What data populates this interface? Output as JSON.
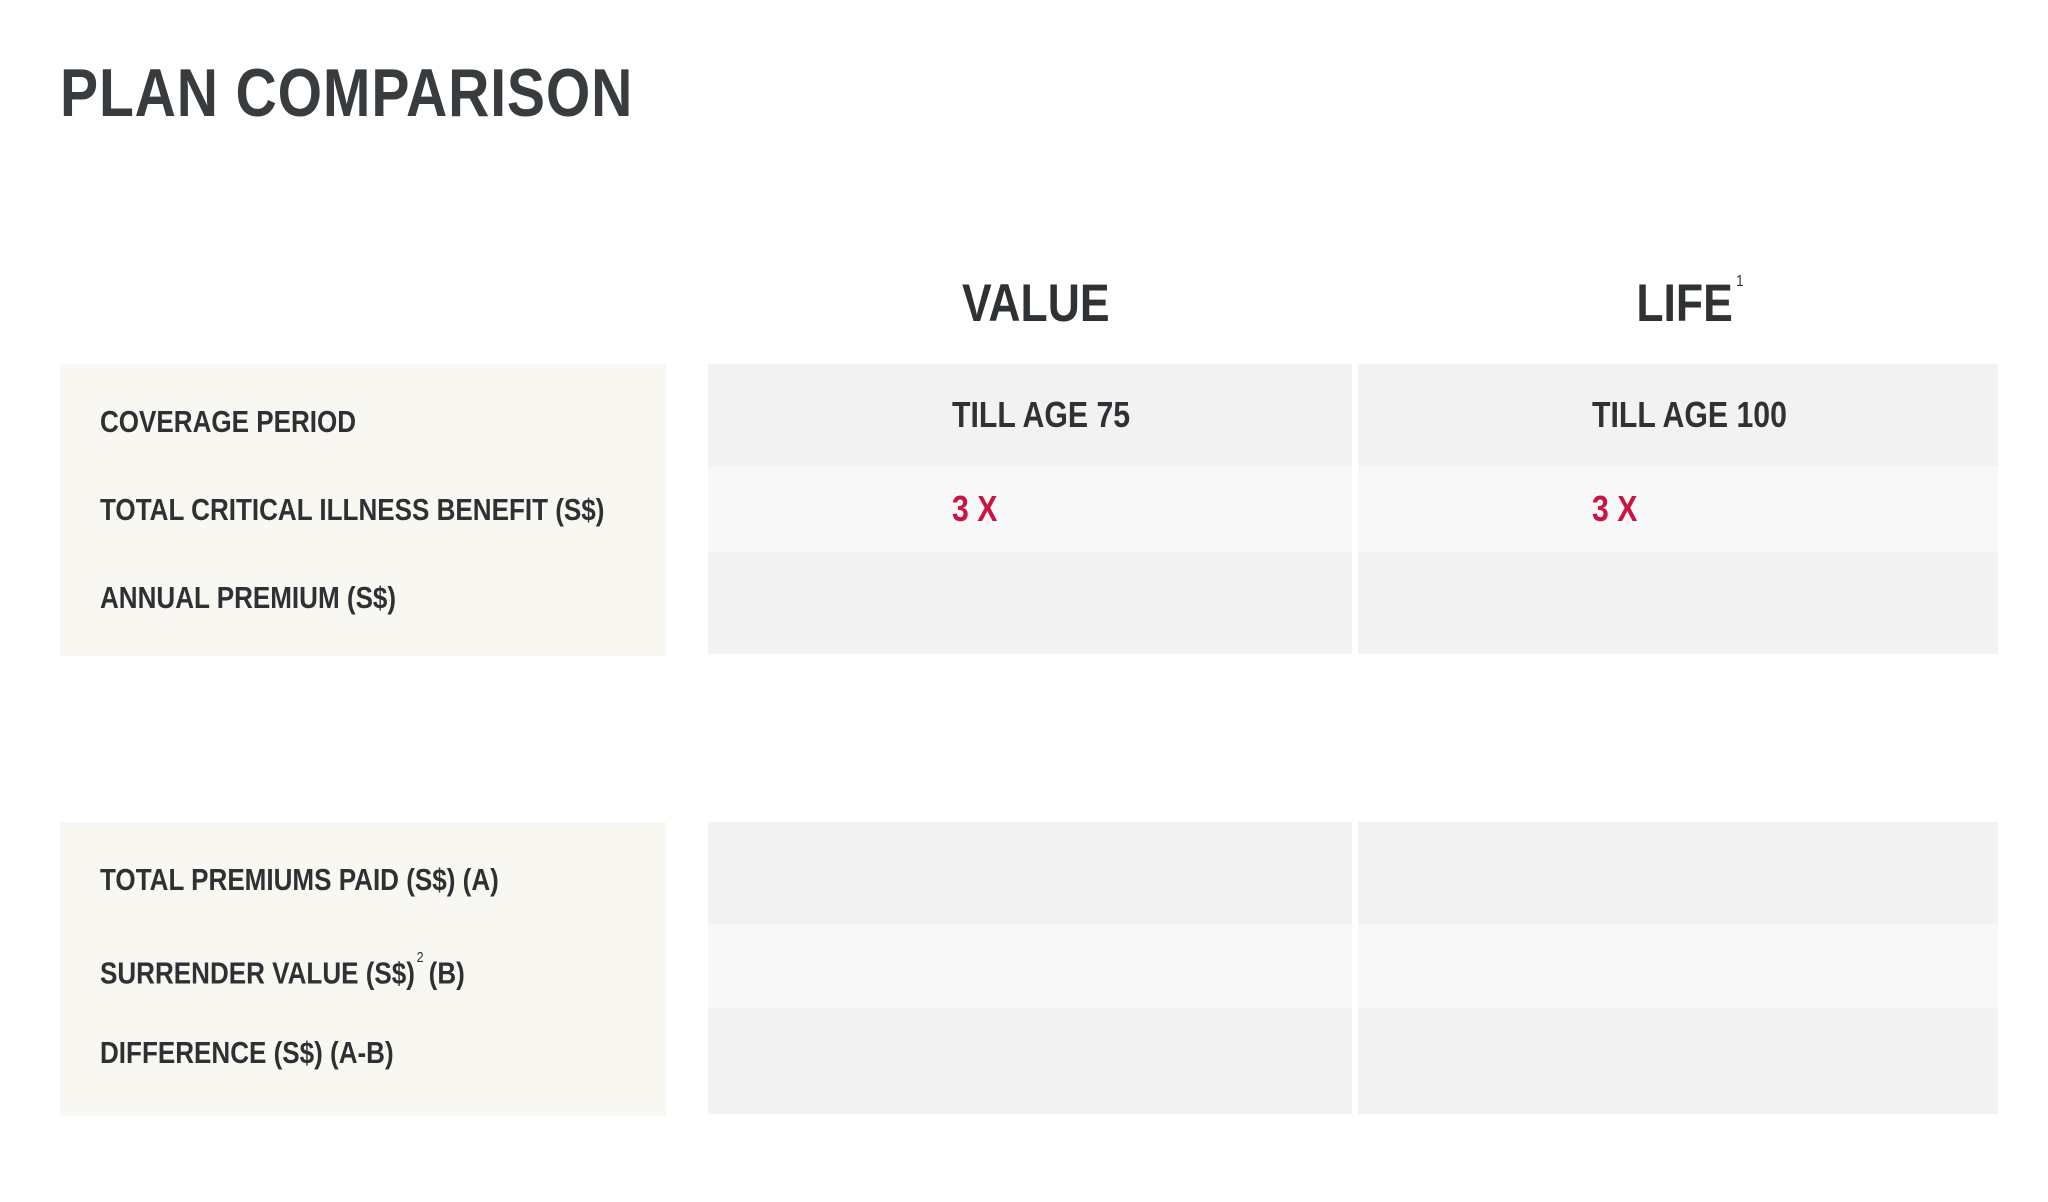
{
  "page": {
    "title": "PLAN COMPARISON"
  },
  "columns": {
    "value": {
      "label": "VALUE"
    },
    "life": {
      "label": "LIFE",
      "footnote": "1"
    }
  },
  "section1": {
    "rows": [
      {
        "label": "COVERAGE PERIOD",
        "value": "TILL AGE 75",
        "life": "TILL AGE 100"
      },
      {
        "label": "TOTAL CRITICAL ILLNESS BENEFIT (S$)",
        "value": "3 X",
        "life": "3 X"
      },
      {
        "label": "ANNUAL PREMIUM (S$)",
        "value": "",
        "life": ""
      }
    ]
  },
  "section2": {
    "rows": [
      {
        "label": "TOTAL PREMIUMS PAID (S$) (A)",
        "value": "",
        "life": ""
      },
      {
        "label_main": "SURRENDER VALUE (S$)",
        "label_footnote": "2",
        "label_suffix": "(B)",
        "value": "",
        "life": ""
      },
      {
        "label": "DIFFERENCE (S$) (A-B)",
        "value": "",
        "life": ""
      }
    ]
  },
  "colors": {
    "accent": "#cc1444",
    "text": "#2f3234",
    "label_panel_bg": "#f8f7f2",
    "cell_dark": "#f2f2f2",
    "cell_light": "#f8f8f8"
  }
}
